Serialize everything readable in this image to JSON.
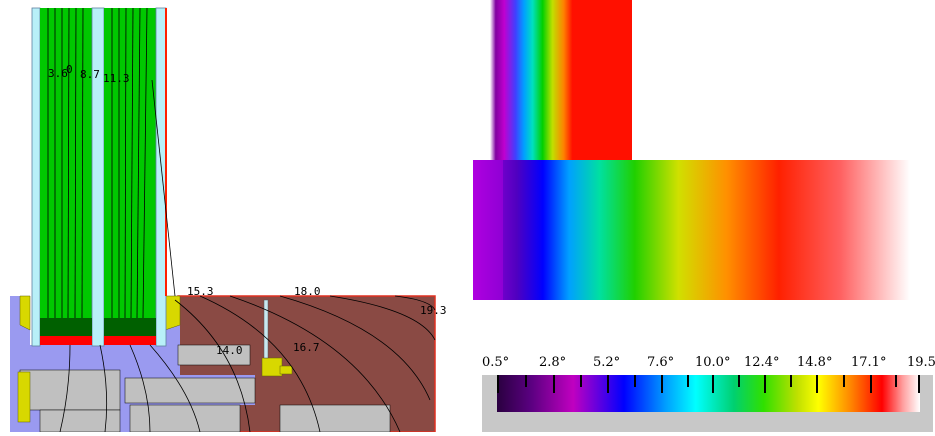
{
  "isotherm_labels": {
    "l1": "3.6",
    "l2": "0",
    "l3": "8.7",
    "l4": "11.3",
    "l5": "15.3",
    "l6": "18.0",
    "l7": "19.3",
    "l8": "14.0",
    "l9": "16.7"
  },
  "legend": {
    "ticks": [
      "0.5°",
      "2.8°",
      "5.2°",
      "7.6°",
      "10.0°",
      "12.4°",
      "14.8°",
      "17.1°",
      "19.5"
    ]
  },
  "colors": {
    "glass_green": "#00c800",
    "frame_blue": "#9a9af0",
    "wall_brown": "#8a4a44",
    "seal_red": "#ff0000",
    "light_cyan": "#b8f0f8",
    "grey": "#c0c0c0",
    "yellow": "#d8d800"
  }
}
